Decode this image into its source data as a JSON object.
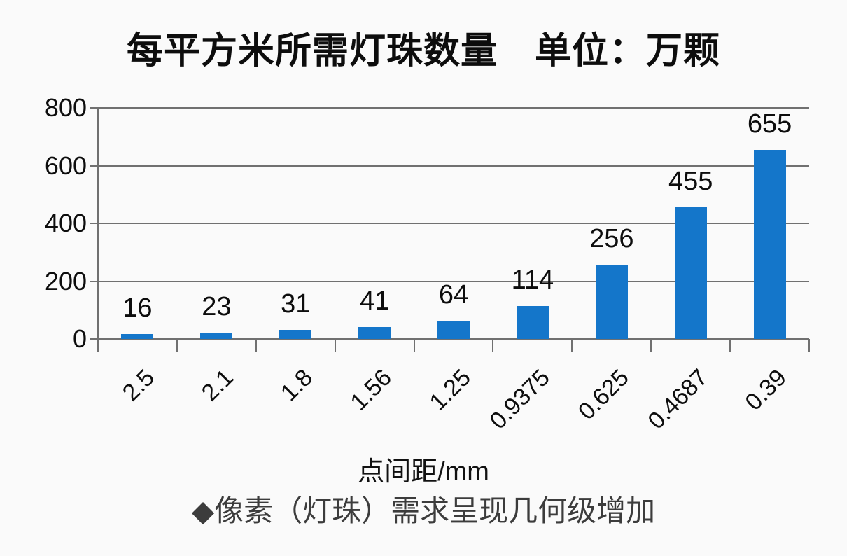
{
  "chart_data": {
    "type": "bar",
    "title": "每平方米所需灯珠数量　单位：万颗",
    "categories": [
      "2.5",
      "2.1",
      "1.8",
      "1.56",
      "1.25",
      "0.9375",
      "0.625",
      "0.4687",
      "0.39"
    ],
    "values": [
      16,
      23,
      31,
      41,
      64,
      114,
      256,
      455,
      655
    ],
    "xlabel": "点间距/mm",
    "ylabel": "",
    "ylim": [
      0,
      800
    ],
    "ytick_step": 200,
    "yticks": [
      "800",
      "600",
      "400",
      "200",
      "0"
    ],
    "grid": true,
    "legend": "none",
    "caption": "◆像素（灯珠）需求呈现几何级增加"
  },
  "colors": {
    "bar": "#1476CA",
    "grid": "#707070",
    "text": "#0d0d0d",
    "caption_text": "#3c3c3c",
    "background": "#fafafa"
  }
}
